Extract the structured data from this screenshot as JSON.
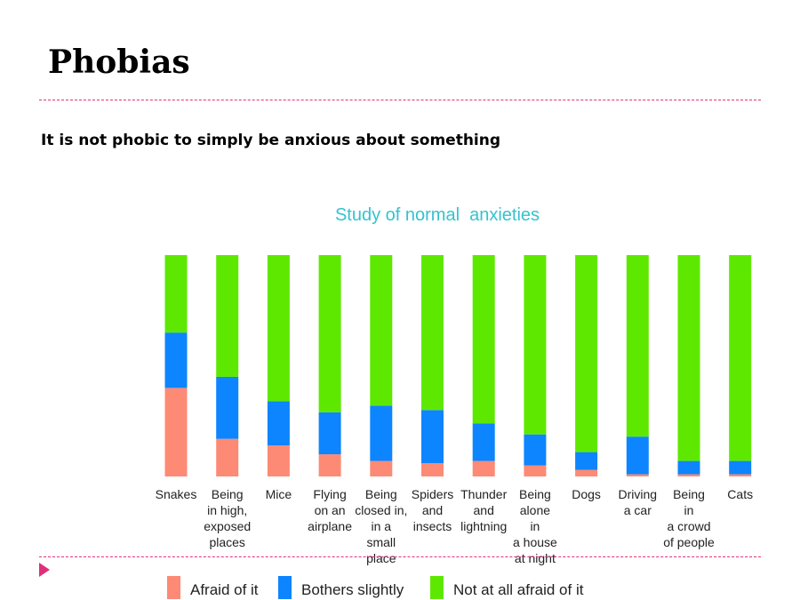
{
  "slide": {
    "title": "Phobias",
    "subtitle": "It is not phobic to simply be anxious about something"
  },
  "chart_data": {
    "type": "bar",
    "stacked": true,
    "normalized": true,
    "title": "Study of normal  anxieties",
    "xlabel": "",
    "ylabel": "",
    "ylim": [
      0,
      100
    ],
    "grid": false,
    "legend_position": "bottom",
    "categories": [
      [
        "Snakes"
      ],
      [
        "Being",
        "in high,",
        "exposed",
        "places"
      ],
      [
        "Mice"
      ],
      [
        "Flying",
        "on an",
        "airplane"
      ],
      [
        "Being",
        "closed in,",
        "in a",
        "small",
        "place"
      ],
      [
        "Spiders",
        "and",
        "insects"
      ],
      [
        "Thunder",
        "and",
        "lightning"
      ],
      [
        "Being",
        "alone",
        "in",
        "a house",
        "at night"
      ],
      [
        "Dogs"
      ],
      [
        "Driving",
        "a car"
      ],
      [
        "Being",
        "in",
        "a crowd",
        "of people"
      ],
      [
        "Cats"
      ]
    ],
    "series": [
      {
        "name": "Afraid of it",
        "color": "#fd8a75",
        "values": [
          40,
          17,
          14,
          10,
          7,
          6,
          7,
          5,
          3,
          1,
          1,
          1
        ]
      },
      {
        "name": "Bothers slightly",
        "color": "#0d85ff",
        "values": [
          25,
          28,
          20,
          19,
          25,
          24,
          17,
          14,
          8,
          17,
          6,
          6
        ]
      },
      {
        "name": "Not at all afraid of it",
        "color": "#5ee800",
        "values": [
          35,
          55,
          66,
          71,
          68,
          70,
          76,
          81,
          89,
          82,
          93,
          93
        ]
      }
    ]
  }
}
